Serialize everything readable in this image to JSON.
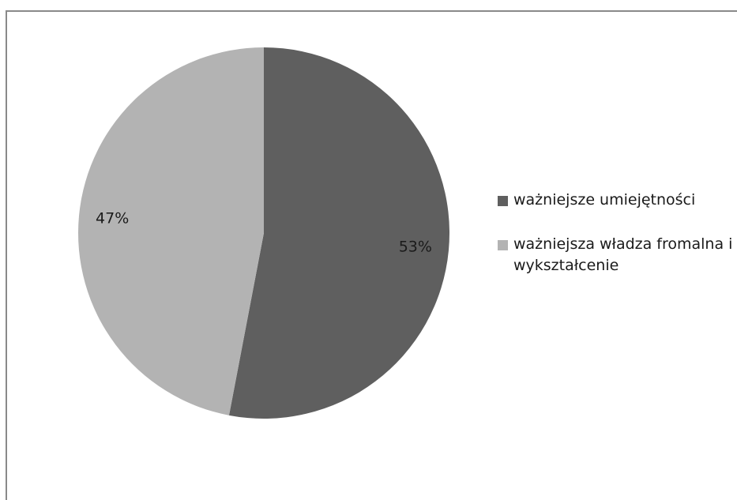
{
  "chart_data": {
    "type": "pie",
    "title": "",
    "slices": [
      {
        "label": "ważniejsze umiejętności",
        "value": 53,
        "display": "53%",
        "color": "#5f5f5f"
      },
      {
        "label": "ważniejsza władza fromalna i wykształcenie",
        "value": 47,
        "display": "47%",
        "color": "#b3b3b3"
      }
    ],
    "legend_placement": "right"
  },
  "legend": {
    "items": [
      {
        "label": "ważniejsze umiejętności",
        "color": "#5f5f5f"
      },
      {
        "label": "ważniejsza władza fromalna i wykształcenie",
        "color": "#b3b3b3"
      }
    ]
  }
}
